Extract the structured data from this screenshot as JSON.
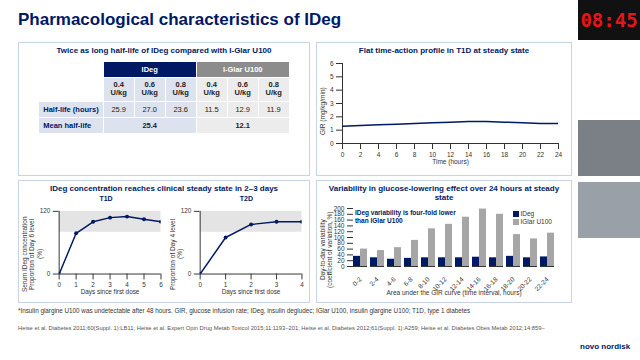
{
  "title": "Pharmacological characteristics of IDeg",
  "timer": "08:45",
  "table_panel": {
    "title": "Twice as long half-life of IDeg compared with I-Glar U100",
    "table": {
      "groups": [
        {
          "name": "IDeg",
          "columns": [
            "0.4 U/kg",
            "0.6 U/kg",
            "0.8 U/kg"
          ]
        },
        {
          "name": "I-Glar U100",
          "columns": [
            "0.4 U/kg",
            "0.6 U/kg",
            "0.8 U/kg"
          ]
        }
      ],
      "rows": [
        {
          "label": "Half-life (hours)",
          "cells": [
            "25.9",
            "27.0",
            "23.6",
            "11.5",
            "12.9",
            "11.9"
          ]
        },
        {
          "label": "Mean half-life",
          "cells": [
            "25.4",
            "12.1"
          ]
        }
      ]
    }
  },
  "concentration_panel_title": "IDeg concentration reaches clinical steady state in 2–3 days",
  "chart_data": [
    {
      "type": "line",
      "title": "Flat time-action profile in T1D at steady state",
      "x": [
        0,
        2,
        4,
        6,
        8,
        10,
        12,
        14,
        16,
        18,
        20,
        22,
        24
      ],
      "values": [
        1.3,
        1.35,
        1.4,
        1.45,
        1.5,
        1.55,
        1.6,
        1.65,
        1.65,
        1.6,
        1.55,
        1.5,
        1.5
      ],
      "color": "#001965",
      "xlim": [
        0,
        24
      ],
      "xticks": [
        0,
        2,
        4,
        6,
        8,
        10,
        12,
        14,
        16,
        18,
        20,
        22,
        24
      ],
      "ylim": [
        0,
        6
      ],
      "yticks": [
        0,
        1,
        2,
        3,
        4,
        5,
        6
      ],
      "xlabel": "Time (hours)",
      "ylabel": [
        "GIR (mg/kg/min)"
      ]
    },
    {
      "type": "line",
      "title": "T1D",
      "x": [
        0,
        1,
        2,
        3,
        4,
        5,
        6
      ],
      "values": [
        0,
        78,
        100,
        108,
        110,
        105,
        100
      ],
      "color": "#001965",
      "marker": "circle",
      "shaded_band": [
        80,
        120
      ],
      "xlim": [
        0,
        6
      ],
      "xticks": [
        0,
        1,
        2,
        3,
        4,
        5,
        6
      ],
      "ylim": [
        0,
        120
      ],
      "yticks": [
        0,
        120
      ],
      "xlabel": "Days since first dose",
      "ylabel": [
        "Serum IDeg concentration",
        "Proportion of Day 6 level (%)"
      ]
    },
    {
      "type": "line",
      "title": "T2D",
      "x": [
        0,
        1,
        2,
        3,
        4
      ],
      "values": [
        0,
        70,
        95,
        100,
        100
      ],
      "color": "#001965",
      "marker": "circle",
      "shaded_band": [
        80,
        120
      ],
      "xlim": [
        0,
        4
      ],
      "xticks": [
        0,
        1,
        2,
        3,
        4
      ],
      "ylim": [
        0,
        120
      ],
      "yticks": [
        0,
        120
      ],
      "xlabel": "Days since first dose",
      "ylabel": [
        "Proportion of Day 4 level (%)"
      ]
    },
    {
      "type": "bar",
      "title": "Variability in glucose-lowering effect over 24 hours at steady state",
      "categories": [
        "0-2",
        "2-4",
        "4-6",
        "6-8",
        "8-10",
        "10-12",
        "12-14",
        "14-16",
        "16-18",
        "18-20",
        "20-22",
        "22-24"
      ],
      "series": [
        {
          "name": "IDeg",
          "color": "#001965",
          "values": [
            35,
            30,
            25,
            28,
            30,
            30,
            30,
            32,
            30,
            35,
            30,
            33
          ]
        },
        {
          "name": "IGlar U100",
          "color": "#a6a6a6",
          "values": [
            60,
            55,
            65,
            90,
            130,
            150,
            170,
            198,
            180,
            110,
            95,
            115
          ]
        }
      ],
      "ylim": [
        0,
        200
      ],
      "yticks": [
        0,
        20,
        40,
        60,
        80,
        100,
        120,
        140,
        160,
        180,
        200
      ],
      "xlabel": "Area under the GIR curve (time interval, hours)",
      "ylabel": [
        "Day-to-day variability",
        "(coefficient of variation, %)"
      ],
      "annotation": "IDeg variability is four-fold lower than IGlar U100",
      "legend": "top-right"
    }
  ],
  "footnote": "*Insulin glargine U100 was undetectable after 48 hours. GIR, glucose infusion rate; IDeg, insulin degludec; IGlar U100, insulin glargine U100; T1D, type 1 diabetes",
  "references": "Heise et al. Diabetes 2011;60(Suppl. 1):LB11; Heise et al. Expert Opin Drug Metab Toxicol 2015;11:1193–201; Heise et al. Diabetes 2012;61(Suppl. 1):A259; Heise et al. Diabetes Obes Metab 2012;14:859–",
  "logo": "novo nordisk"
}
